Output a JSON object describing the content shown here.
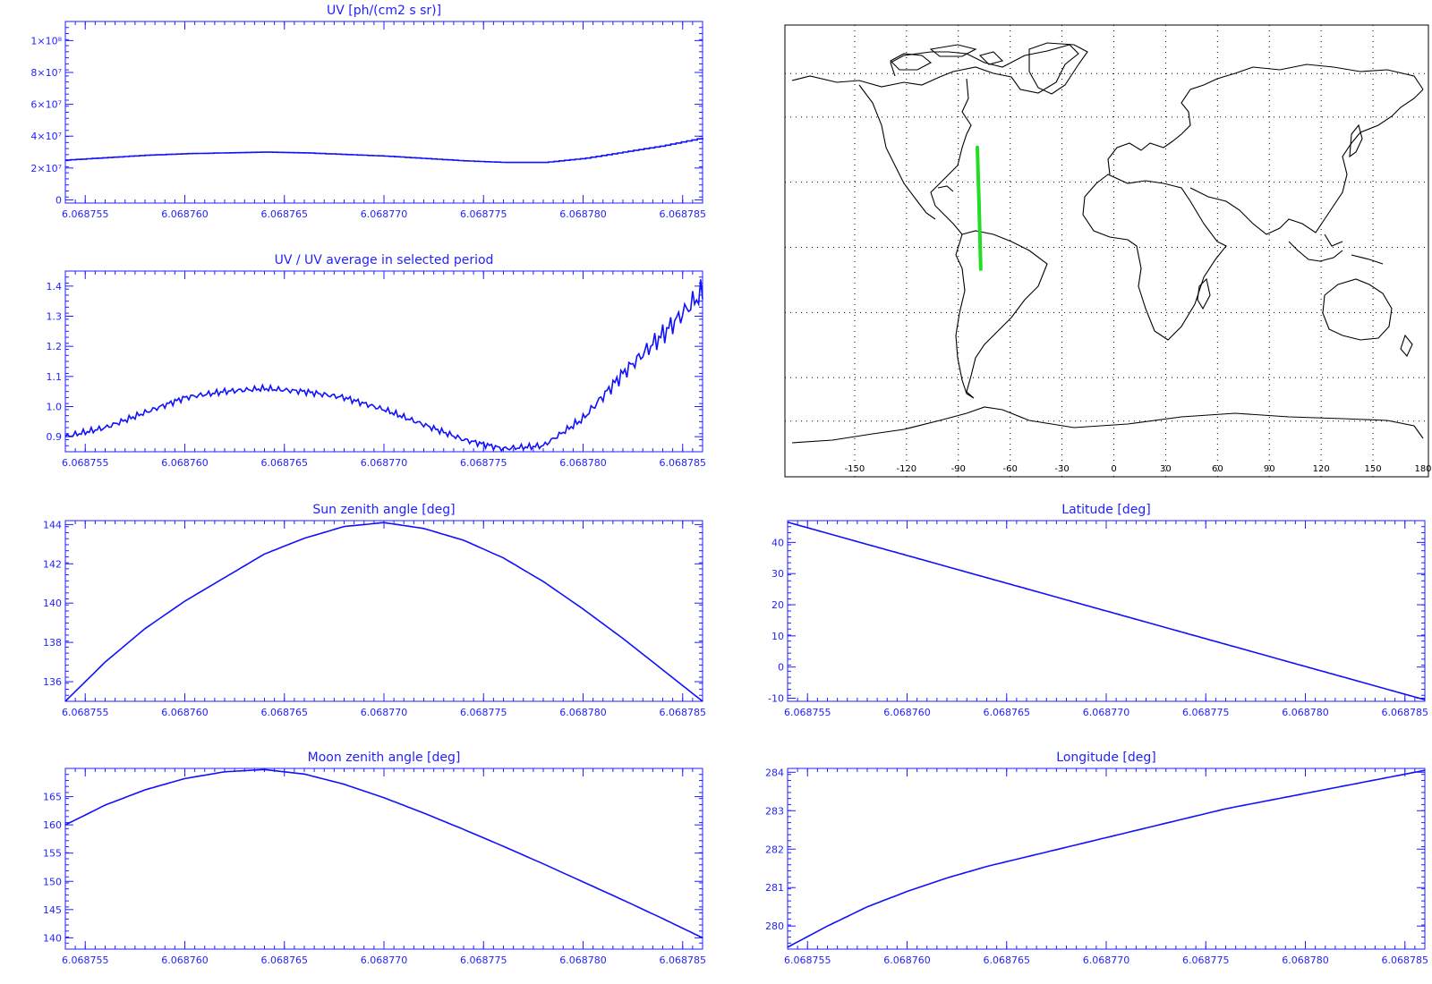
{
  "colors": {
    "axis": "#1f1fff",
    "series": "#1010ff",
    "track": "#22dd22",
    "coast": "#000000",
    "background": "#ffffff"
  },
  "map": {
    "x_ticks": [
      "-150",
      "-120",
      "-90",
      "-60",
      "-30",
      "0",
      "30",
      "60",
      "90",
      "120",
      "150",
      "180"
    ],
    "grid": "dotted",
    "track": {
      "lon": [
        -79,
        -77
      ],
      "lat": [
        46,
        -10
      ]
    }
  },
  "chart_data": [
    {
      "id": "uv",
      "type": "line",
      "title": "UV [ph/(cm2 s sr)]",
      "xlabel": "",
      "ylabel": "",
      "x_ticks": [
        "6.068755",
        "6.068760",
        "6.068765",
        "6.068770",
        "6.068775",
        "6.068780",
        "6.068785"
      ],
      "x_tick_values": [
        6.068755,
        6.06876,
        6.068765,
        6.06877,
        6.068775,
        6.06878,
        6.068785
      ],
      "xlim": [
        6.068754,
        6.068786
      ],
      "y_ticks": [
        "0",
        "2×10⁷",
        "4×10⁷",
        "6×10⁷",
        "8×10⁷",
        "1×10⁸"
      ],
      "y_tick_values": [
        0,
        20000000,
        40000000,
        60000000,
        80000000,
        100000000
      ],
      "ylim": [
        -2000000,
        112000000
      ],
      "style": "step",
      "x": [
        6.068754,
        6.068756,
        6.068758,
        6.06876,
        6.068762,
        6.068764,
        6.068766,
        6.068768,
        6.06877,
        6.068772,
        6.068774,
        6.068776,
        6.068778,
        6.06878,
        6.068782,
        6.068784,
        6.068786
      ],
      "y": [
        25000000,
        26500000,
        28000000,
        29000000,
        29500000,
        30000000,
        29500000,
        28500000,
        27500000,
        26000000,
        24500000,
        23500000,
        23500000,
        26000000,
        30000000,
        34000000,
        39000000
      ]
    },
    {
      "id": "uv_ratio",
      "type": "line",
      "title": "UV / UV average in selected period",
      "xlabel": "",
      "ylabel": "",
      "x_ticks": [
        "6.068755",
        "6.068760",
        "6.068765",
        "6.068770",
        "6.068775",
        "6.068780",
        "6.068785"
      ],
      "x_tick_values": [
        6.068755,
        6.06876,
        6.068765,
        6.06877,
        6.068775,
        6.06878,
        6.068785
      ],
      "xlim": [
        6.068754,
        6.068786
      ],
      "y_ticks": [
        "0.9",
        "1.0",
        "1.1",
        "1.2",
        "1.3",
        "1.4"
      ],
      "y_tick_values": [
        0.9,
        1.0,
        1.1,
        1.2,
        1.3,
        1.4
      ],
      "ylim": [
        0.85,
        1.45
      ],
      "x": [
        6.068754,
        6.068756,
        6.068758,
        6.06876,
        6.068762,
        6.068764,
        6.068766,
        6.068768,
        6.06877,
        6.068772,
        6.068774,
        6.068776,
        6.068778,
        6.06878,
        6.068782,
        6.068784,
        6.068786
      ],
      "y": [
        0.9,
        0.93,
        0.98,
        1.03,
        1.05,
        1.06,
        1.05,
        1.03,
        0.99,
        0.94,
        0.89,
        0.86,
        0.87,
        0.96,
        1.11,
        1.24,
        1.38
      ]
    },
    {
      "id": "sun",
      "type": "line",
      "title": "Sun zenith angle [deg]",
      "xlabel": "",
      "ylabel": "",
      "x_ticks": [
        "6.068755",
        "6.068760",
        "6.068765",
        "6.068770",
        "6.068775",
        "6.068780",
        "6.068785"
      ],
      "x_tick_values": [
        6.068755,
        6.06876,
        6.068765,
        6.06877,
        6.068775,
        6.06878,
        6.068785
      ],
      "xlim": [
        6.068754,
        6.068786
      ],
      "y_ticks": [
        "136",
        "138",
        "140",
        "142",
        "144"
      ],
      "y_tick_values": [
        136,
        138,
        140,
        142,
        144
      ],
      "ylim": [
        135,
        144.2
      ],
      "x": [
        6.068754,
        6.068756,
        6.068758,
        6.06876,
        6.068762,
        6.068764,
        6.068766,
        6.068768,
        6.06877,
        6.068772,
        6.068774,
        6.068776,
        6.068778,
        6.06878,
        6.068782,
        6.068784,
        6.068786
      ],
      "y": [
        135.0,
        137.0,
        138.7,
        140.1,
        141.3,
        142.5,
        143.3,
        143.9,
        144.1,
        143.8,
        143.2,
        142.3,
        141.1,
        139.7,
        138.2,
        136.6,
        135.0
      ]
    },
    {
      "id": "lat",
      "type": "line",
      "title": "Latitude [deg]",
      "xlabel": "",
      "ylabel": "",
      "x_ticks": [
        "6.068755",
        "6.068760",
        "6.068765",
        "6.068770",
        "6.068775",
        "6.068780",
        "6.068785"
      ],
      "x_tick_values": [
        6.068755,
        6.06876,
        6.068765,
        6.06877,
        6.068775,
        6.06878,
        6.068785
      ],
      "xlim": [
        6.068754,
        6.068786
      ],
      "y_ticks": [
        "-10",
        "0",
        "10",
        "20",
        "30",
        "40"
      ],
      "y_tick_values": [
        -10,
        0,
        10,
        20,
        30,
        40
      ],
      "ylim": [
        -11,
        47
      ],
      "x": [
        6.068754,
        6.068786
      ],
      "y": [
        46.5,
        -10.5
      ]
    },
    {
      "id": "moon",
      "type": "line",
      "title": "Moon zenith angle [deg]",
      "xlabel": "",
      "ylabel": "",
      "x_ticks": [
        "6.068755",
        "6.068760",
        "6.068765",
        "6.068770",
        "6.068775",
        "6.068780",
        "6.068785"
      ],
      "x_tick_values": [
        6.068755,
        6.06876,
        6.068765,
        6.06877,
        6.068775,
        6.06878,
        6.068785
      ],
      "xlim": [
        6.068754,
        6.068786
      ],
      "y_ticks": [
        "140",
        "145",
        "150",
        "155",
        "160",
        "165"
      ],
      "y_tick_values": [
        140,
        145,
        150,
        155,
        160,
        165
      ],
      "ylim": [
        138,
        170
      ],
      "x": [
        6.068754,
        6.068756,
        6.068758,
        6.06876,
        6.068762,
        6.068764,
        6.068766,
        6.068768,
        6.06877,
        6.068772,
        6.068774,
        6.068776,
        6.068778,
        6.06878,
        6.068782,
        6.068784,
        6.068786
      ],
      "y": [
        160.0,
        163.5,
        166.2,
        168.2,
        169.4,
        169.8,
        169.0,
        167.2,
        164.8,
        162.1,
        159.2,
        156.2,
        153.1,
        149.9,
        146.7,
        143.4,
        140.0
      ]
    },
    {
      "id": "lon",
      "type": "line",
      "title": "Longitude [deg]",
      "xlabel": "",
      "ylabel": "",
      "x_ticks": [
        "6.068755",
        "6.068760",
        "6.068765",
        "6.068770",
        "6.068775",
        "6.068780",
        "6.068785"
      ],
      "x_tick_values": [
        6.068755,
        6.06876,
        6.068765,
        6.06877,
        6.068775,
        6.06878,
        6.068785
      ],
      "xlim": [
        6.068754,
        6.068786
      ],
      "y_ticks": [
        "280",
        "281",
        "282",
        "283",
        "284"
      ],
      "y_tick_values": [
        280,
        281,
        282,
        283,
        284
      ],
      "ylim": [
        279.4,
        284.1
      ],
      "x": [
        6.068754,
        6.068756,
        6.068758,
        6.06876,
        6.068762,
        6.068764,
        6.068766,
        6.068768,
        6.06877,
        6.068772,
        6.068774,
        6.068776,
        6.068778,
        6.06878,
        6.068782,
        6.068784,
        6.068786
      ],
      "y": [
        279.45,
        280.0,
        280.5,
        280.9,
        281.25,
        281.55,
        281.8,
        282.05,
        282.3,
        282.55,
        282.8,
        283.05,
        283.25,
        283.45,
        283.65,
        283.85,
        284.05
      ]
    }
  ]
}
